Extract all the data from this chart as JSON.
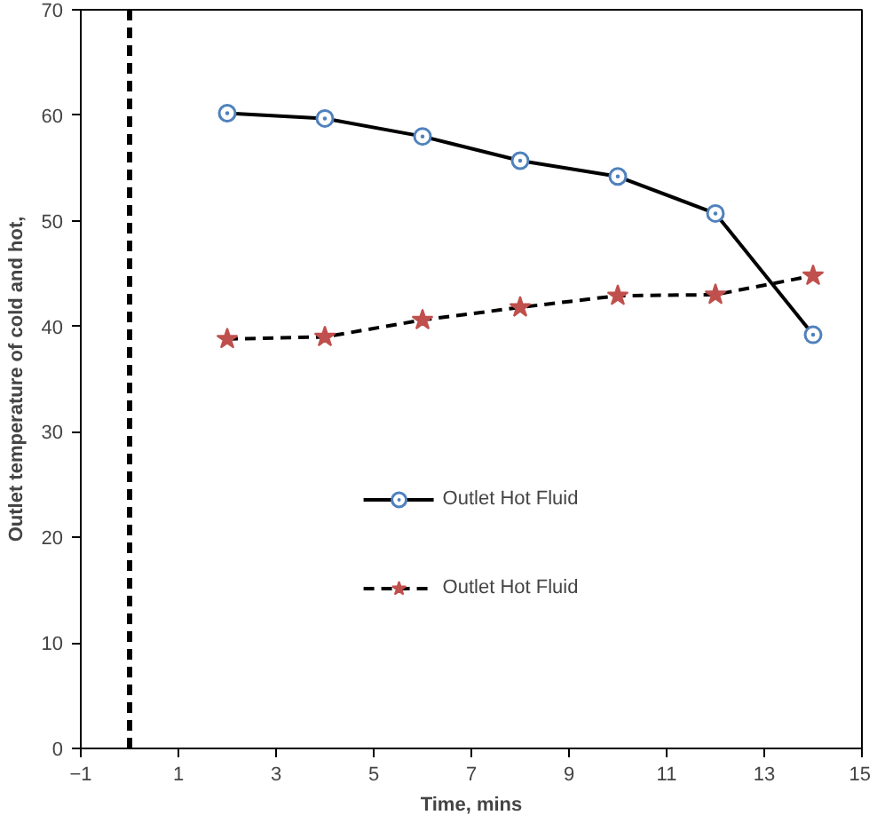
{
  "chart_data": {
    "type": "line",
    "xlabel": "Time, mins",
    "ylabel": "Outlet temperature of cold and hot,",
    "x": [
      2,
      4,
      6,
      8,
      10,
      12,
      14
    ],
    "series": [
      {
        "name": "Outlet Hot Fluid",
        "color": "#4f81bd",
        "marker": "circle",
        "line_style": "solid",
        "values": [
          60.2,
          59.7,
          58.0,
          55.7,
          54.2,
          50.7,
          39.2
        ]
      },
      {
        "name": "Outlet Hot Fluid",
        "color": "#c0504d",
        "marker": "star",
        "line_style": "dashed",
        "values": [
          38.8,
          39.0,
          40.6,
          41.8,
          42.9,
          43.0,
          44.8
        ]
      }
    ],
    "xlim": [
      -1,
      15
    ],
    "ylim": [
      0,
      70
    ],
    "xticks": [
      -1,
      1,
      3,
      5,
      7,
      9,
      11,
      13,
      15
    ],
    "yticks": [
      0,
      10,
      20,
      30,
      40,
      50,
      60,
      70
    ],
    "ref_lines": [
      {
        "axis": "x",
        "value": 0,
        "line_style": "dashed",
        "color": "#000000"
      }
    ],
    "grid": false,
    "legend": "bottom"
  }
}
